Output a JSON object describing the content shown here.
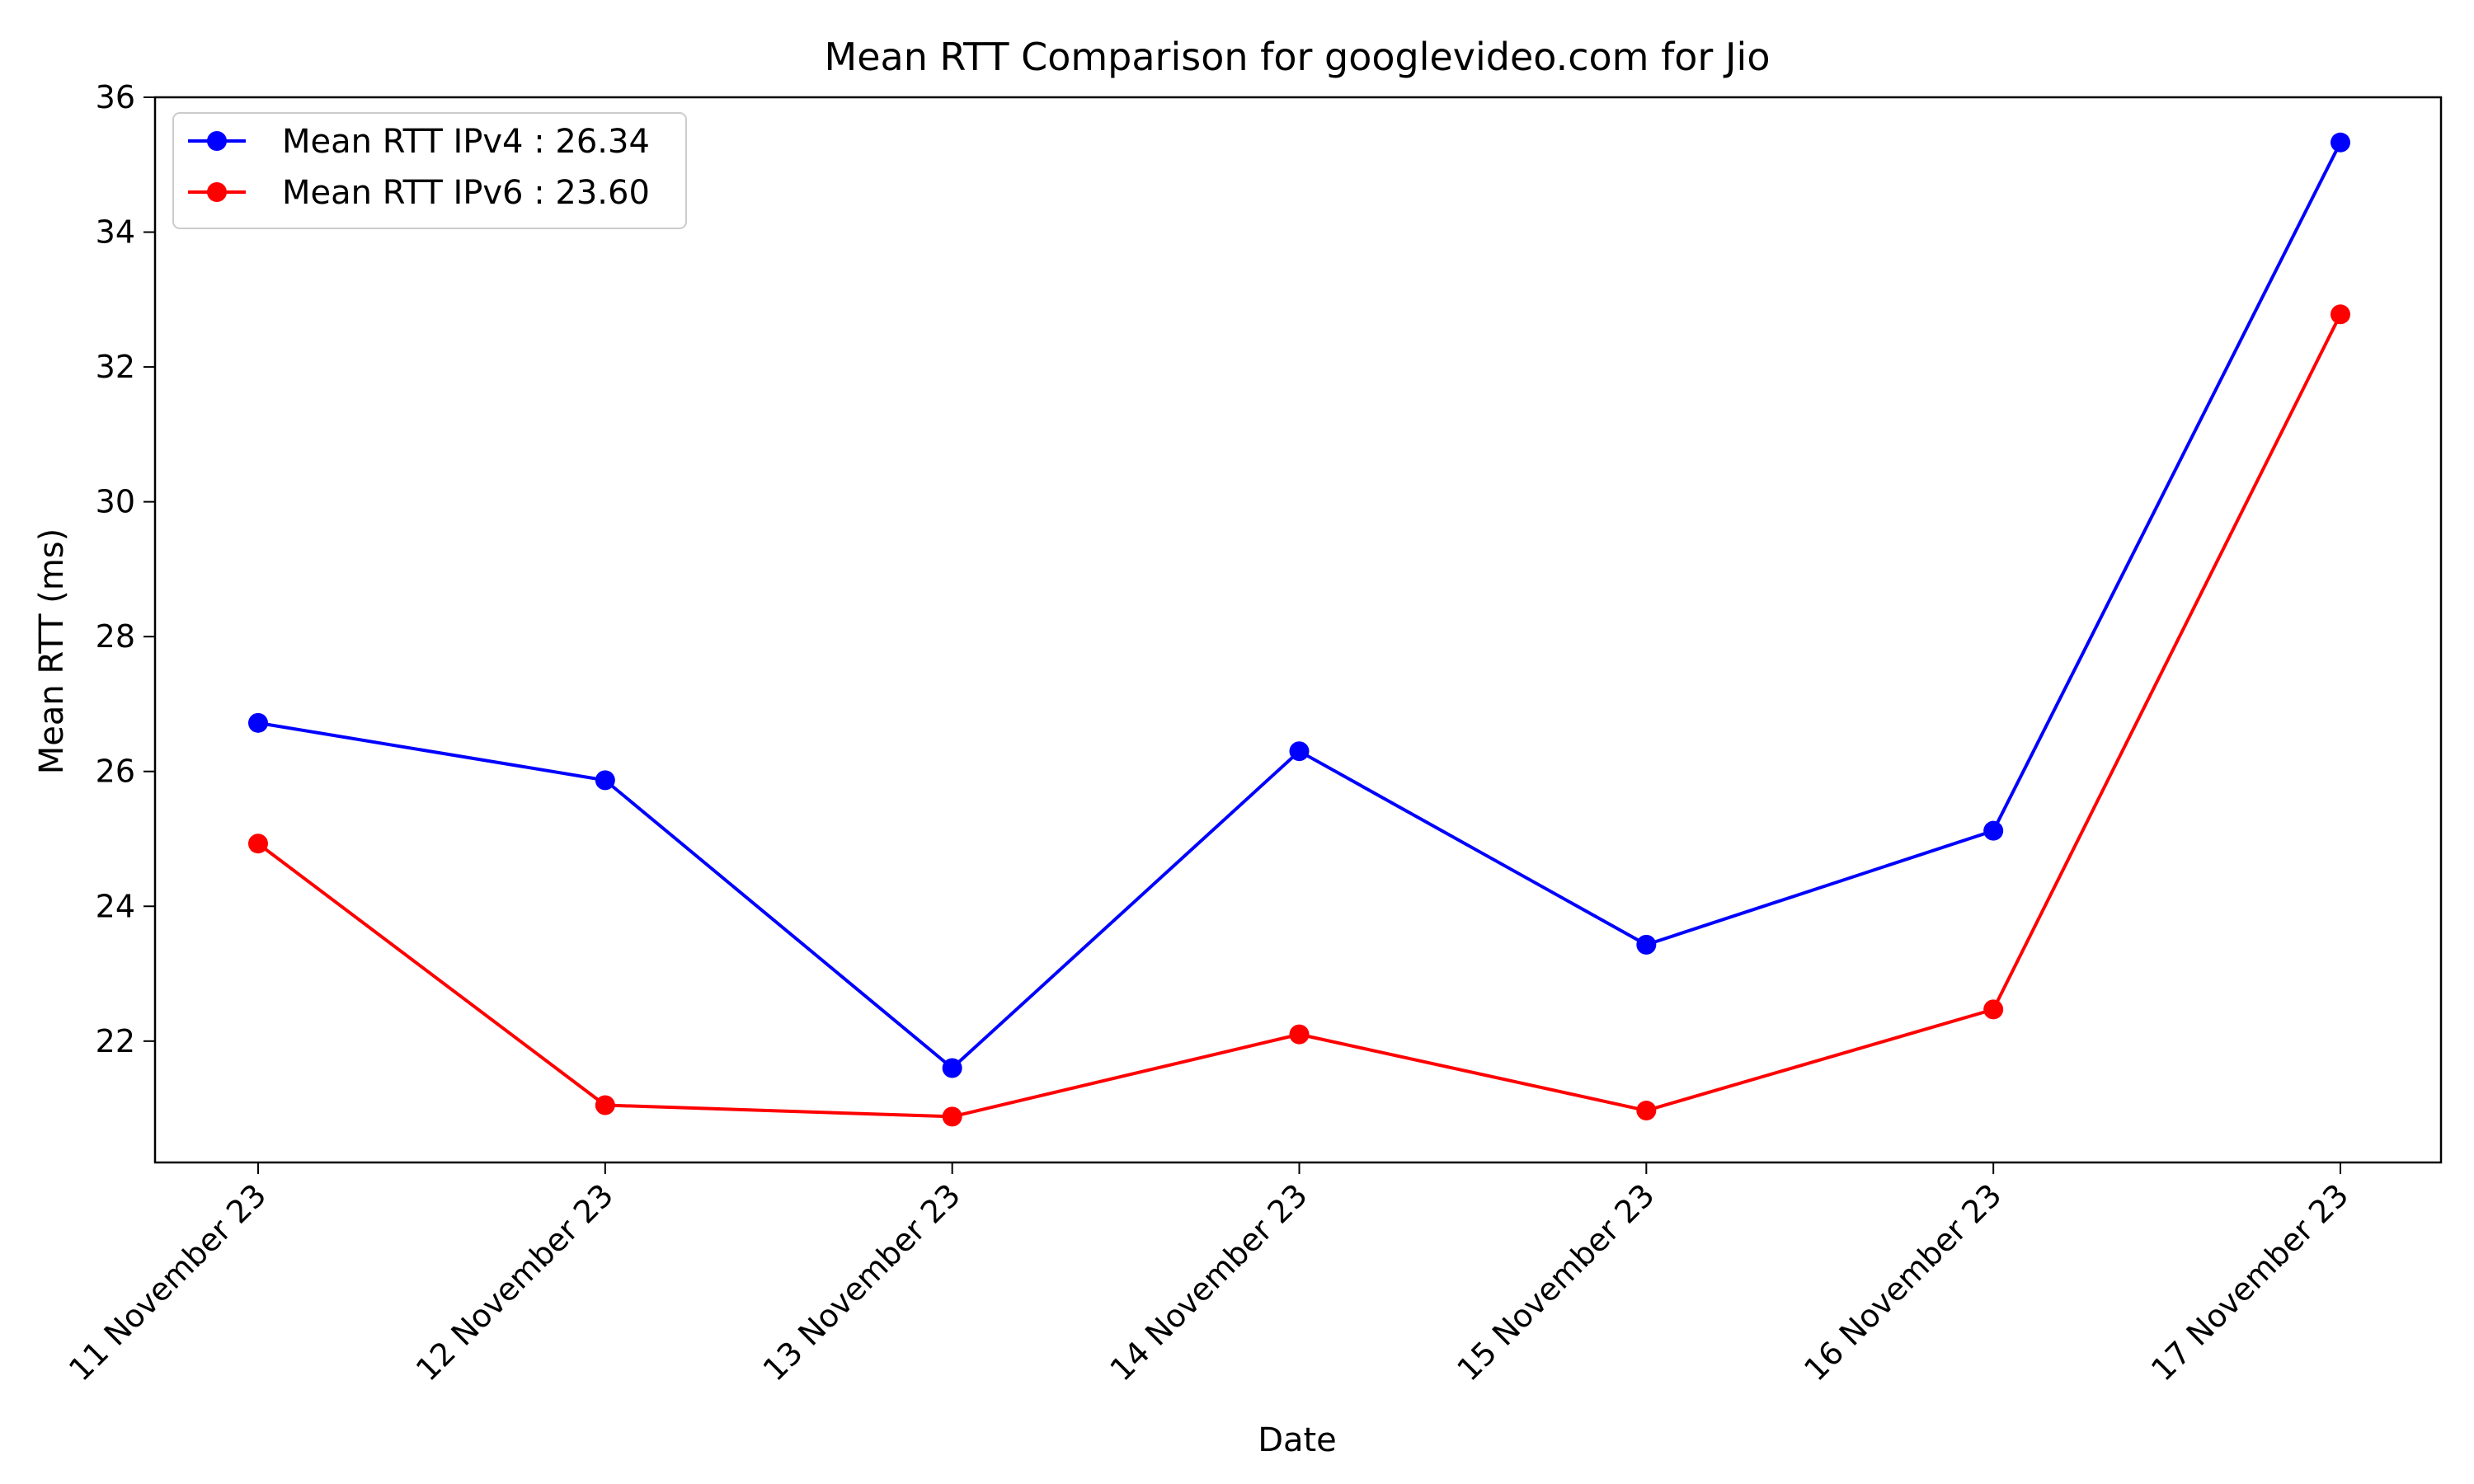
{
  "chart_data": {
    "type": "line",
    "title": "Mean RTT Comparison for googlevideo.com for Jio",
    "xlabel": "Date",
    "ylabel": "Mean RTT (ms)",
    "categories": [
      "11 November 23",
      "12 November 23",
      "13 November 23",
      "14 November 23",
      "15 November 23",
      "16 November 23",
      "17 November 23"
    ],
    "ylim": [
      20.2,
      36
    ],
    "yticks": [
      22,
      24,
      26,
      28,
      30,
      32,
      34,
      36
    ],
    "series": [
      {
        "name": "Mean RTT IPv4 : 26.34",
        "color": "#0000ff",
        "marker": "circle",
        "values": [
          26.72,
          25.87,
          21.6,
          26.3,
          23.43,
          25.12,
          35.33
        ]
      },
      {
        "name": "Mean RTT IPv6 : 23.60",
        "color": "#ff0000",
        "marker": "circle",
        "values": [
          24.93,
          21.05,
          20.88,
          22.1,
          20.97,
          22.47,
          32.78
        ]
      }
    ],
    "legend": "top-left",
    "grid": false
  }
}
